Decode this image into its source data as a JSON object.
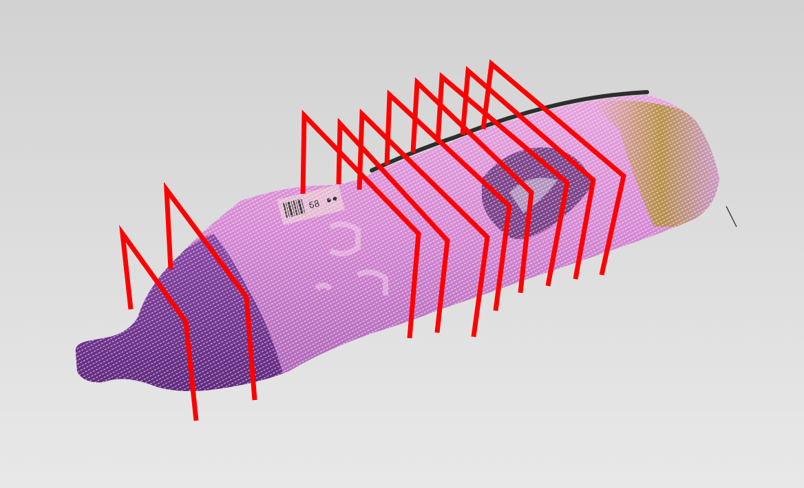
{
  "scene": {
    "label": {
      "barcode_text": "68"
    },
    "grasp_markers": {
      "count": 10
    },
    "colors": {
      "background_top": "#d2d2d2",
      "background_bottom": "#e8e8e8",
      "bottle_body": "#c878c8",
      "bottle_cap": "#6a2a8a",
      "bottle_band": "#6b2d8f",
      "bottle_tail": "#9a8a30",
      "logo_mark": "#5a2a6a",
      "label_sticker": "#e8c0d0",
      "marker": "#ff0000",
      "shadow": "#111111"
    }
  }
}
